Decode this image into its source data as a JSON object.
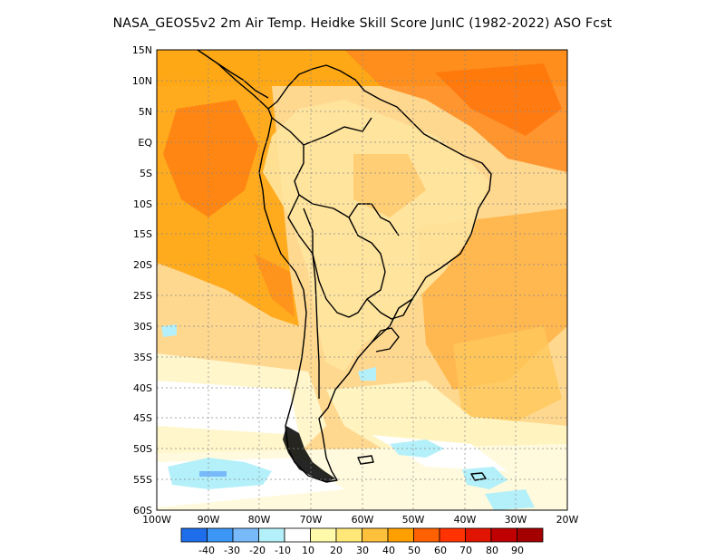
{
  "title": "NASA_GEOS5v2  2m Air Temp. Heidke Skill Score JunIC (1982-2022) ASO Fcst",
  "map": {
    "lat_labels": [
      "15N",
      "10N",
      "5N",
      "EQ",
      "5S",
      "10S",
      "15S",
      "20S",
      "25S",
      "30S",
      "35S",
      "40S",
      "45S",
      "50S",
      "55S",
      "60S"
    ],
    "lon_labels": [
      "100W",
      "90W",
      "80W",
      "70W",
      "60W",
      "50W",
      "40W",
      "30W",
      "20W"
    ],
    "gridlines": "dotted",
    "region": "South America"
  },
  "colorbar": {
    "labels": [
      "-40",
      "-30",
      "-20",
      "-10",
      "10",
      "20",
      "30",
      "40",
      "50",
      "60",
      "70",
      "80",
      "90"
    ],
    "colors": [
      "#1e6eeb",
      "#3c96f5",
      "#78b9fa",
      "#b4f0fa",
      "#ffffff",
      "#fffaaa",
      "#ffe878",
      "#ffc03c",
      "#ffa000",
      "#ff6000",
      "#ff3200",
      "#e11400",
      "#c00000",
      "#a50000"
    ]
  }
}
